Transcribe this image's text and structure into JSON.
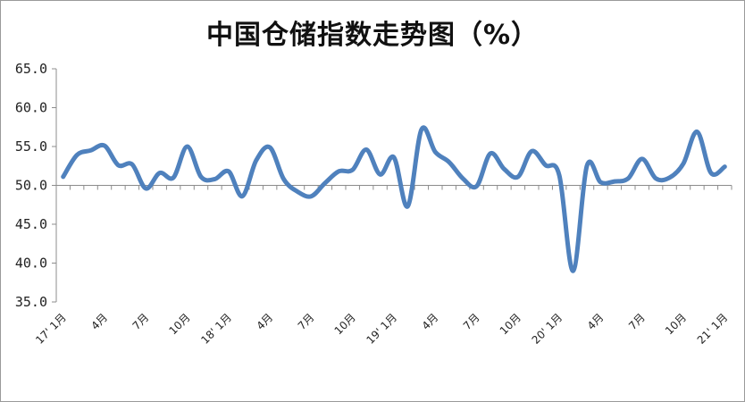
{
  "chart_data": {
    "type": "line",
    "title": "中国仓储指数走势图（%）",
    "xlabel": "",
    "ylabel": "",
    "ylim": [
      35,
      65
    ],
    "yticks": [
      "65.0",
      "60.0",
      "55.0",
      "50.0",
      "45.0",
      "40.0",
      "35.0"
    ],
    "grid": false,
    "x_tick_labels": [
      "17' 1月",
      "4月",
      "7月",
      "10月",
      "18' 1月",
      "4月",
      "7月",
      "10月",
      "19' 1月",
      "4月",
      "7月",
      "10月",
      "20' 1月",
      "4月",
      "7月",
      "10月",
      "21' 1月"
    ],
    "series": [
      {
        "color": "#4f81bd",
        "values": [
          51.1,
          53.9,
          54.5,
          55.1,
          52.6,
          52.7,
          49.6,
          51.6,
          51.0,
          55.0,
          51.1,
          50.8,
          51.8,
          48.6,
          53.2,
          54.9,
          50.8,
          49.2,
          48.6,
          50.3,
          51.8,
          52.0,
          54.6,
          51.4,
          53.6,
          47.3,
          57.2,
          54.3,
          53.0,
          50.9,
          49.9,
          54.1,
          52.1,
          51.1,
          54.4,
          52.6,
          51.3,
          39.0,
          52.5,
          50.4,
          50.5,
          50.9,
          53.4,
          50.9,
          51.0,
          52.8,
          56.9,
          51.6,
          52.4
        ]
      }
    ]
  }
}
